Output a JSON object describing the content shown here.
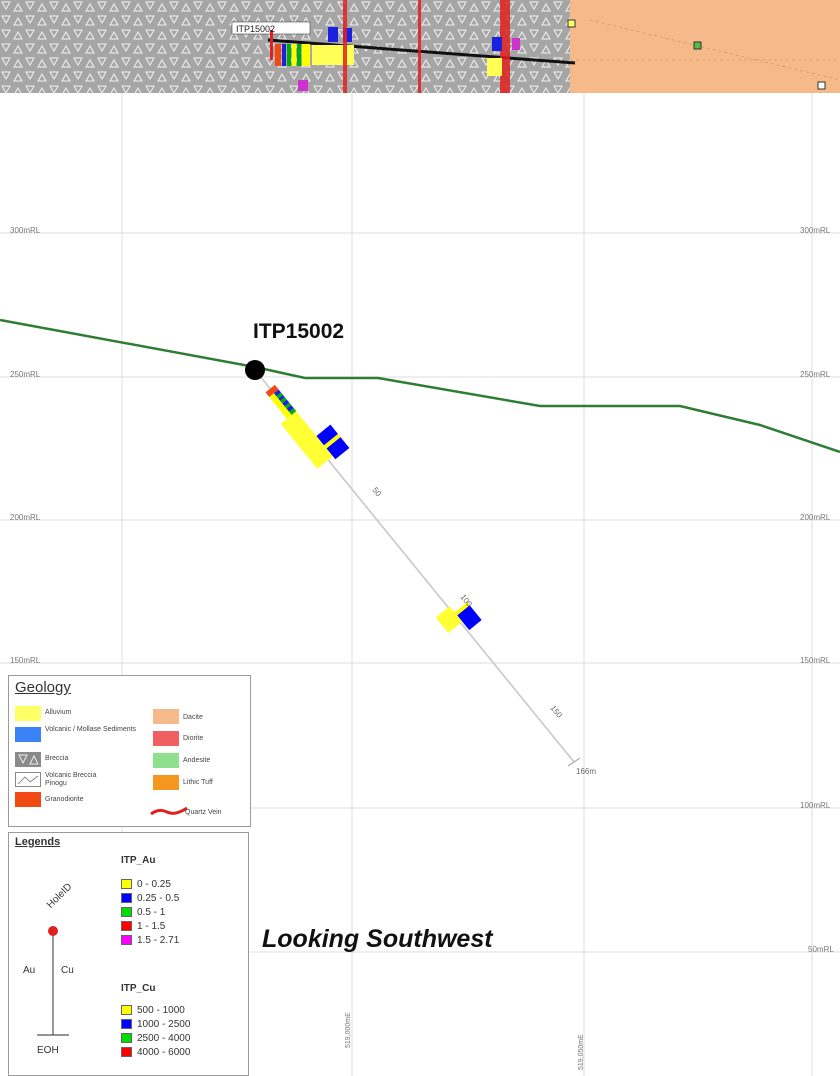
{
  "section": {
    "hole_id_label": "ITP15002",
    "plan_hole_label": "ITP15002",
    "view_caption": "Looking Southwest",
    "rl_left": [
      "300mRL",
      "250mRL",
      "200mRL",
      "150mRL"
    ],
    "rl_right": [
      "300mRL",
      "250mRL",
      "200mRL",
      "150mRL",
      "100mRL",
      "50mRL"
    ],
    "eastings": [
      "519,000mE",
      "519,050mE"
    ],
    "depth_labels": [
      "50",
      "100",
      "150"
    ],
    "eoh_label": "166m",
    "colors": {
      "topography": "#2e7d32",
      "plan_breccia": "#9e9e9e",
      "plan_dacite": "#f6b98a",
      "trace": "#c8c8c8",
      "collar": "#000000"
    }
  },
  "geology_legend": {
    "title": "Geology",
    "items": [
      {
        "label": "Alluvium",
        "color": "#ffff66"
      },
      {
        "label": "Volcanic / Mollase Sediments",
        "color": "#3b82f6"
      },
      {
        "label": "Breccia",
        "color": "#8a8a8a"
      },
      {
        "label": "Volcanic Breccia Pinogu",
        "color": "#ffffff"
      },
      {
        "label": "Granodiorite",
        "color": "#f04a12"
      },
      {
        "label": "Dacite",
        "color": "#f6b98a"
      },
      {
        "label": "Diorite",
        "color": "#f06060"
      },
      {
        "label": "Andesite",
        "color": "#8ee08e"
      },
      {
        "label": "Lithic Tuff",
        "color": "#f5961e"
      },
      {
        "label": "Quartz Vein",
        "color": "#e02020"
      }
    ]
  },
  "legends": {
    "title": "Legends",
    "symbol": {
      "hole_id": "HoleID",
      "au": "Au",
      "cu": "Cu",
      "eoh": "EOH"
    },
    "au": {
      "title": "ITP_Au",
      "items": [
        {
          "label": "0 - 0.25",
          "color": "#ffff00"
        },
        {
          "label": "0.25 - 0.5",
          "color": "#0000ff"
        },
        {
          "label": "0.5 - 1",
          "color": "#00dd00"
        },
        {
          "label": "1 - 1.5",
          "color": "#ff0000"
        },
        {
          "label": "1.5 - 2.71",
          "color": "#ff00ff"
        }
      ]
    },
    "cu": {
      "title": "ITP_Cu",
      "items": [
        {
          "label": "500 - 1000",
          "color": "#ffff00"
        },
        {
          "label": "1000 - 2500",
          "color": "#0000ff"
        },
        {
          "label": "2500 - 4000",
          "color": "#00dd00"
        },
        {
          "label": "4000 - 6000",
          "color": "#ff0000"
        }
      ]
    }
  }
}
